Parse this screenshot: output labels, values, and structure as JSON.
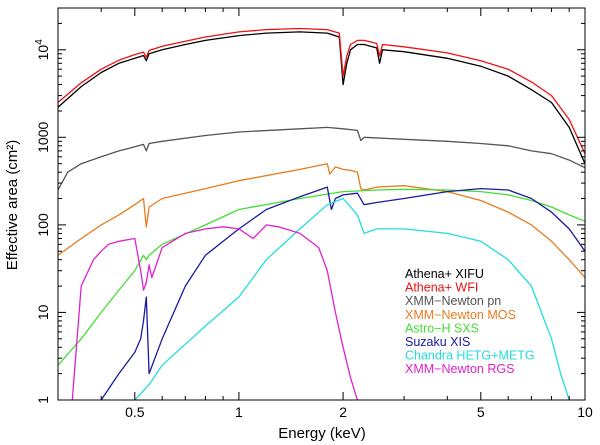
{
  "chart_data": {
    "type": "line",
    "title": "",
    "xlabel": "Energy (keV)",
    "ylabel": "Effective area (cm²)",
    "xscale": "log",
    "yscale": "log",
    "xlim": [
      0.3,
      10
    ],
    "ylim": [
      1,
      30000
    ],
    "x_ticks": [
      {
        "value": 0.5,
        "label": "0.5"
      },
      {
        "value": 1,
        "label": "1"
      },
      {
        "value": 2,
        "label": "2"
      },
      {
        "value": 5,
        "label": "5"
      },
      {
        "value": 10,
        "label": "10"
      }
    ],
    "y_ticks": [
      {
        "value": 1,
        "label": "1"
      },
      {
        "value": 10,
        "label": "10"
      },
      {
        "value": 100,
        "label": "100"
      },
      {
        "value": 1000,
        "label": "1000"
      },
      {
        "value": 10000,
        "label": "10^4"
      }
    ],
    "legend_position": "bottom-right",
    "series": [
      {
        "name": "Athena+ XIFU",
        "color": "#000000",
        "x": [
          0.3,
          0.35,
          0.4,
          0.45,
          0.5,
          0.53,
          0.54,
          0.55,
          0.6,
          0.7,
          0.8,
          1.0,
          1.2,
          1.5,
          1.8,
          1.95,
          2.0,
          2.05,
          2.1,
          2.2,
          2.3,
          2.4,
          2.5,
          2.55,
          2.6,
          3.0,
          4.0,
          5.0,
          6.0,
          7.0,
          8.0,
          9.0,
          10.0
        ],
        "y": [
          2200,
          3800,
          5500,
          7000,
          8000,
          8600,
          7500,
          9000,
          10000,
          11500,
          12800,
          14500,
          15500,
          16000,
          15500,
          14000,
          4000,
          7000,
          10000,
          11500,
          11500,
          11000,
          10500,
          7000,
          10000,
          9500,
          8000,
          6500,
          5000,
          3500,
          2500,
          1300,
          500
        ]
      },
      {
        "name": "Athena+ WFI",
        "color": "#ee1111",
        "x": [
          0.3,
          0.35,
          0.4,
          0.45,
          0.5,
          0.53,
          0.54,
          0.55,
          0.6,
          0.7,
          0.8,
          1.0,
          1.2,
          1.5,
          1.8,
          1.95,
          2.0,
          2.05,
          2.1,
          2.2,
          2.3,
          2.4,
          2.5,
          2.55,
          2.6,
          3.0,
          4.0,
          5.0,
          6.0,
          7.0,
          8.0,
          9.0,
          10.0
        ],
        "y": [
          2500,
          4200,
          6000,
          7600,
          8800,
          9400,
          8200,
          9800,
          11000,
          12500,
          14000,
          16000,
          17000,
          17500,
          17000,
          15500,
          5000,
          8500,
          11500,
          12800,
          12800,
          12300,
          11800,
          8500,
          11500,
          10800,
          9200,
          7500,
          6000,
          4300,
          3000,
          1600,
          650
        ]
      },
      {
        "name": "XMM−Newton pn",
        "color": "#555555",
        "x": [
          0.3,
          0.32,
          0.35,
          0.4,
          0.45,
          0.5,
          0.53,
          0.54,
          0.55,
          0.6,
          0.8,
          1.0,
          1.5,
          1.8,
          2.0,
          2.2,
          2.25,
          2.3,
          3.0,
          4.0,
          5.0,
          6.0,
          7.0,
          8.0,
          9.0,
          10.0
        ],
        "y": [
          250,
          400,
          500,
          600,
          700,
          780,
          830,
          700,
          850,
          900,
          1050,
          1150,
          1250,
          1300,
          1250,
          1200,
          920,
          1000,
          950,
          900,
          850,
          800,
          700,
          650,
          550,
          450
        ]
      },
      {
        "name": "XMM−Newton MOS",
        "color": "#e87b1e",
        "x": [
          0.3,
          0.35,
          0.4,
          0.45,
          0.5,
          0.53,
          0.54,
          0.55,
          0.6,
          0.8,
          1.0,
          1.5,
          1.8,
          1.83,
          1.9,
          2.0,
          2.1,
          2.2,
          2.25,
          2.3,
          2.5,
          3.0,
          4.0,
          5.0,
          6.0,
          7.0,
          8.0,
          9.0,
          10.0
        ],
        "y": [
          45,
          70,
          100,
          130,
          170,
          200,
          95,
          160,
          200,
          260,
          320,
          430,
          500,
          380,
          460,
          430,
          420,
          400,
          260,
          250,
          270,
          280,
          240,
          190,
          140,
          100,
          65,
          40,
          25
        ]
      },
      {
        "name": "Astro−H SXS",
        "color": "#44dd33",
        "x": [
          0.3,
          0.35,
          0.4,
          0.45,
          0.5,
          0.53,
          0.54,
          0.55,
          0.6,
          0.8,
          1.0,
          1.5,
          2.0,
          2.5,
          3.0,
          4.0,
          5.0,
          6.0,
          7.0,
          8.0,
          9.0,
          10.0
        ],
        "y": [
          2.5,
          5,
          10,
          18,
          30,
          45,
          40,
          45,
          60,
          100,
          150,
          200,
          240,
          250,
          255,
          250,
          240,
          220,
          190,
          160,
          130,
          110
        ]
      },
      {
        "name": "Suzaku XIS",
        "color": "#1a1aa0",
        "x": [
          0.4,
          0.45,
          0.5,
          0.52,
          0.53,
          0.54,
          0.55,
          0.6,
          0.7,
          0.8,
          1.0,
          1.2,
          1.5,
          1.75,
          1.8,
          1.85,
          1.9,
          2.0,
          2.2,
          2.3,
          2.5,
          3.0,
          4.0,
          5.0,
          6.0,
          7.0,
          8.0,
          9.0,
          10.0
        ],
        "y": [
          1,
          2,
          3.5,
          5,
          8,
          15,
          2,
          5,
          20,
          45,
          90,
          150,
          210,
          260,
          270,
          150,
          200,
          220,
          230,
          170,
          180,
          200,
          240,
          260,
          250,
          200,
          140,
          90,
          50
        ]
      },
      {
        "name": "Chandra HETG+METG",
        "color": "#22dddd",
        "x": [
          0.5,
          0.55,
          0.6,
          0.8,
          1.0,
          1.2,
          1.5,
          1.8,
          2.0,
          2.1,
          2.2,
          2.3,
          2.5,
          3.0,
          4.0,
          5.0,
          6.0,
          7.0,
          8.0,
          8.5,
          9.0
        ],
        "y": [
          1,
          1.5,
          2.5,
          7,
          15,
          40,
          90,
          170,
          200,
          160,
          130,
          80,
          90,
          90,
          80,
          65,
          40,
          20,
          5,
          2,
          1
        ]
      },
      {
        "name": "XMM−Newton RGS",
        "color": "#dd22cc",
        "x": [
          0.33,
          0.35,
          0.38,
          0.4,
          0.42,
          0.45,
          0.5,
          0.52,
          0.53,
          0.54,
          0.55,
          0.56,
          0.6,
          0.7,
          0.8,
          0.9,
          1.0,
          1.1,
          1.2,
          1.3,
          1.5,
          1.7,
          1.8,
          1.9,
          2.0,
          2.1,
          2.2
        ],
        "y": [
          1,
          20,
          40,
          50,
          60,
          65,
          70,
          30,
          18,
          22,
          35,
          25,
          55,
          80,
          90,
          95,
          90,
          70,
          100,
          95,
          80,
          55,
          30,
          10,
          4,
          1.8,
          1
        ]
      }
    ]
  }
}
